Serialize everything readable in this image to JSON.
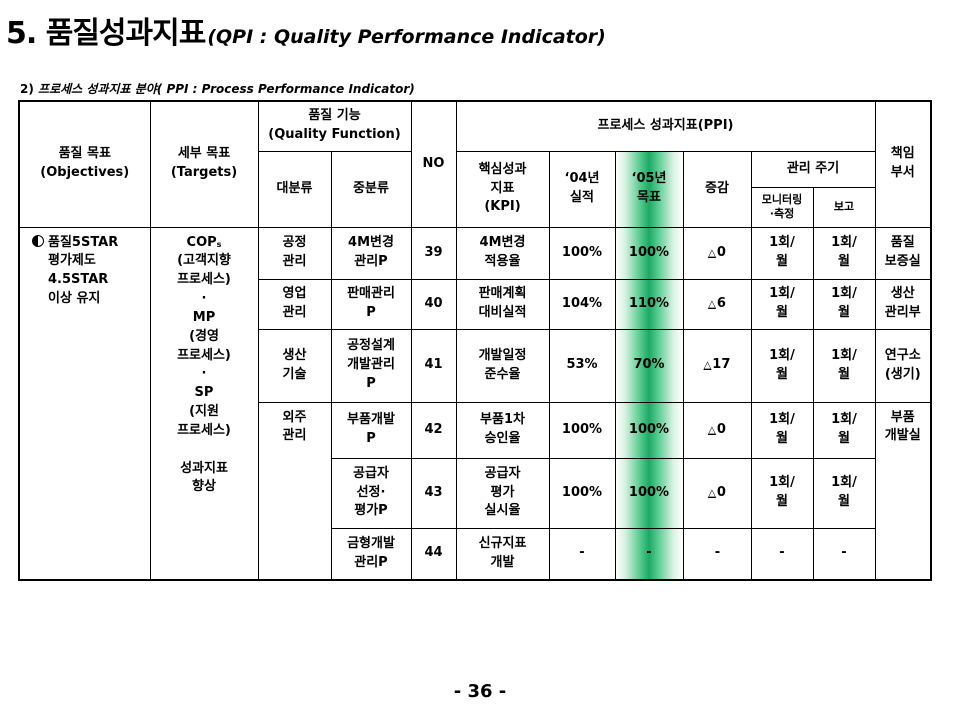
{
  "title": {
    "main": "5. 품질성과지표",
    "sub": "(QPI : Quality Performance Indicator)"
  },
  "subtitle": {
    "number": "2)",
    "text": "프로세스 성과지표 분야( PPI : Process Performance Indicator)"
  },
  "header": {
    "quality_goal": "품질 목표\n(Objectives)",
    "detail_goal": "세부 목표\n(Targets)",
    "quality_function": "품질 기능\n(Quality Function)",
    "major": "대분류",
    "minor": "중분류",
    "no": "NO",
    "ppi": "프로세스 성과지표(PPI)",
    "kpi": "핵심성과\n지표\n(KPI)",
    "y04": "‘04년\n실적",
    "y05": "‘05년\n목표",
    "change": "증감",
    "cycle": "관리 주기",
    "monitor": "모니터링\n·측정",
    "report": "보고",
    "dept": "책임\n부서"
  },
  "goal": {
    "icon": "half-circle-icon",
    "line1": "품질5STAR",
    "rest": "평가제도\n4.5STAR\n이상 유지"
  },
  "targets": {
    "cop_main": "COP",
    "cop_sub": "s",
    "rest": "(고객지향\n프로세스)\n·\nMP\n(경영\n프로세스)\n·\nSP\n(지원\n프로세스)\n\n성과지표\n향상"
  },
  "major_groups": [
    "공정\n관리",
    "영업\n관리",
    "생산\n기술",
    "외주\n관리"
  ],
  "rows": [
    {
      "minor": "4M변경\n관리P",
      "no": "39",
      "kpi": "4M변경\n적용율",
      "y04": "100%",
      "y05": "100%",
      "change_tri": "△",
      "change": "0",
      "monitor": "1회/\n월",
      "report": "1회/\n월",
      "dept": "품질\n보증실"
    },
    {
      "minor": "판매관리\nP",
      "no": "40",
      "kpi": "판매계획\n대비실적",
      "y04": "104%",
      "y05": "110%",
      "change_tri": "△",
      "change": "6",
      "monitor": "1회/\n월",
      "report": "1회/\n월",
      "dept": "생산\n관리부"
    },
    {
      "minor": "공정설계\n개발관리\nP",
      "no": "41",
      "kpi": "개발일정\n준수율",
      "y04": "53%",
      "y05": "70%",
      "change_tri": "△",
      "change": "17",
      "monitor": "1회/\n월",
      "report": "1회/\n월",
      "dept": "연구소\n(생기)"
    },
    {
      "minor": "부품개발\nP",
      "no": "42",
      "kpi": "부품1차\n승인율",
      "y04": "100%",
      "y05": "100%",
      "change_tri": "△",
      "change": "0",
      "monitor": "1회/\n월",
      "report": "1회/\n월",
      "dept": "부품\n개발실"
    },
    {
      "minor": "공급자\n선정·\n평가P",
      "no": "43",
      "kpi": "공급자\n평가\n실시율",
      "y04": "100%",
      "y05": "100%",
      "change_tri": "△",
      "change": "0",
      "monitor": "1회/\n월",
      "report": "1회/\n월",
      "dept": ""
    },
    {
      "minor": "금형개발\n관리P",
      "no": "44",
      "kpi": "신규지표\n개발",
      "y04": "-",
      "y05": "-",
      "change_tri": "",
      "change": "-",
      "monitor": "-",
      "report": "-",
      "dept": ""
    }
  ],
  "page_number": "- 36 -"
}
